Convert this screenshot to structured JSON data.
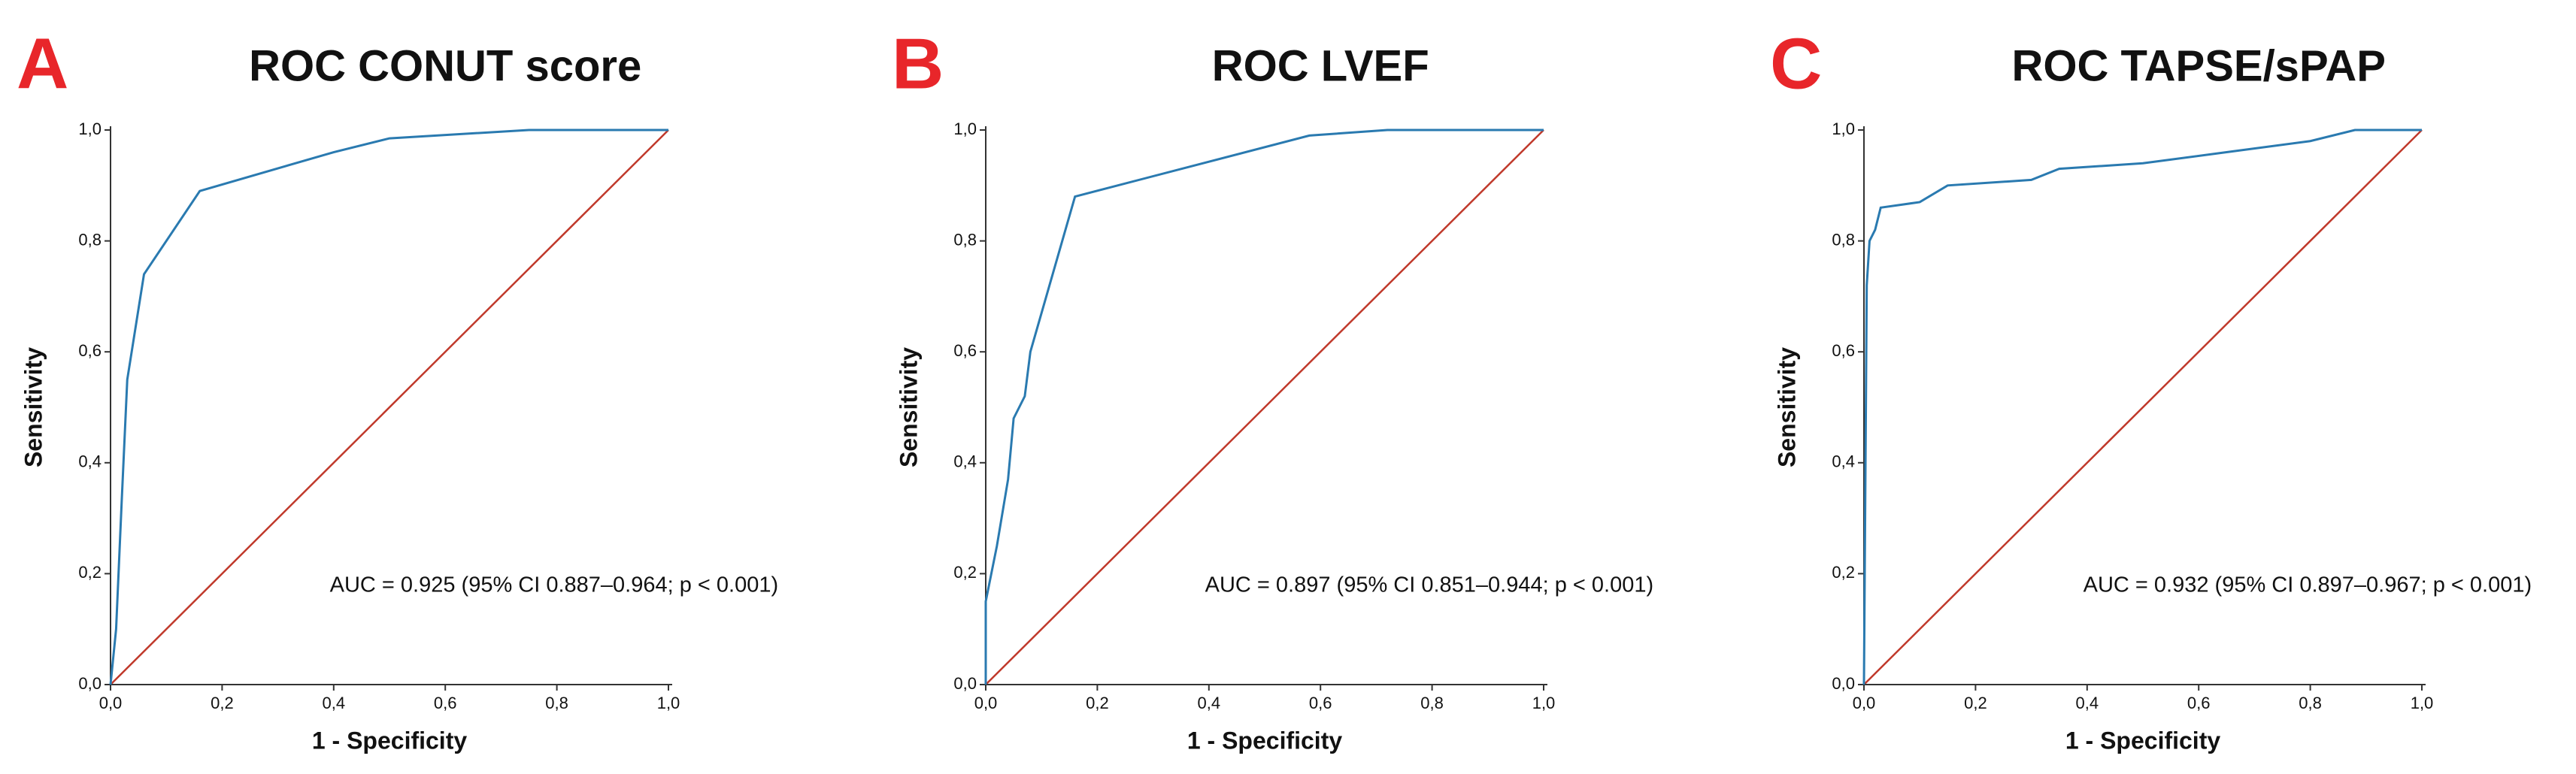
{
  "chart_data": [
    {
      "type": "line",
      "panel_label": "A",
      "panel_color": "#e8262a",
      "title": "ROC CONUT score",
      "x_label": "1 - Specificity",
      "y_label": "Sensitivity",
      "annotation": "AUC = 0.925 (95% CI 0.887–0.964; p < 0.001)",
      "x": [
        0,
        0.01,
        0.02,
        0.03,
        0.06,
        0.16,
        0.4,
        0.5,
        0.75,
        1
      ],
      "values": [
        0,
        0.1,
        0.33,
        0.55,
        0.74,
        0.89,
        0.96,
        0.985,
        1,
        1
      ],
      "color": "#2a7ab0",
      "diagonal": true,
      "diagonal_color": "#c0392b",
      "xlim": [
        0,
        1
      ],
      "ylim": [
        0,
        1
      ],
      "xticks": [
        {
          "value": 0,
          "label": "0,0"
        },
        {
          "value": 0.2,
          "label": "0,2"
        },
        {
          "value": 0.4,
          "label": "0,4"
        },
        {
          "value": 0.6,
          "label": "0,6"
        },
        {
          "value": 0.8,
          "label": "0,8"
        },
        {
          "value": 1,
          "label": "1,0"
        }
      ],
      "yticks": [
        {
          "value": 0,
          "label": "0,0"
        },
        {
          "value": 0.2,
          "label": "0,2"
        },
        {
          "value": 0.4,
          "label": "0,4"
        },
        {
          "value": 0.6,
          "label": "0,6"
        },
        {
          "value": 0.8,
          "label": "0,8"
        },
        {
          "value": 1,
          "label": "1,0"
        }
      ]
    },
    {
      "type": "line",
      "panel_label": "B",
      "panel_color": "#e8262a",
      "title": "ROC LVEF",
      "x_label": "1 - Specificity",
      "y_label": "Sensitivity",
      "annotation": "AUC = 0.897 (95% CI 0.851–0.944; p < 0.001)",
      "x": [
        0,
        0,
        0.02,
        0.04,
        0.05,
        0.07,
        0.08,
        0.16,
        0.58,
        0.72,
        0.98,
        1
      ],
      "values": [
        0,
        0.15,
        0.25,
        0.37,
        0.48,
        0.52,
        0.6,
        0.88,
        0.99,
        1,
        1,
        1
      ],
      "color": "#2a7ab0",
      "diagonal": true,
      "diagonal_color": "#c0392b",
      "xlim": [
        0,
        1
      ],
      "ylim": [
        0,
        1
      ],
      "xticks": [
        {
          "value": 0,
          "label": "0,0"
        },
        {
          "value": 0.2,
          "label": "0,2"
        },
        {
          "value": 0.4,
          "label": "0,4"
        },
        {
          "value": 0.6,
          "label": "0,6"
        },
        {
          "value": 0.8,
          "label": "0,8"
        },
        {
          "value": 1,
          "label": "1,0"
        }
      ],
      "yticks": [
        {
          "value": 0,
          "label": "0,0"
        },
        {
          "value": 0.2,
          "label": "0,2"
        },
        {
          "value": 0.4,
          "label": "0,4"
        },
        {
          "value": 0.6,
          "label": "0,6"
        },
        {
          "value": 0.8,
          "label": "0,8"
        },
        {
          "value": 1,
          "label": "1,0"
        }
      ]
    },
    {
      "type": "line",
      "panel_label": "C",
      "panel_color": "#e8262a",
      "title": "ROC TAPSE/sPAP",
      "x_label": "1 - Specificity",
      "y_label": "Sensitivity",
      "annotation": "AUC = 0.932 (95% CI 0.897–0.967; p < 0.001)",
      "x": [
        0,
        0.005,
        0.01,
        0.02,
        0.03,
        0.1,
        0.15,
        0.3,
        0.35,
        0.5,
        0.65,
        0.8,
        0.88,
        1
      ],
      "values": [
        0,
        0.72,
        0.8,
        0.82,
        0.86,
        0.87,
        0.9,
        0.91,
        0.93,
        0.94,
        0.96,
        0.98,
        1,
        1
      ],
      "color": "#2a7ab0",
      "diagonal": true,
      "diagonal_color": "#c0392b",
      "xlim": [
        0,
        1
      ],
      "ylim": [
        0,
        1
      ],
      "xticks": [
        {
          "value": 0,
          "label": "0,0"
        },
        {
          "value": 0.2,
          "label": "0,2"
        },
        {
          "value": 0.4,
          "label": "0,4"
        },
        {
          "value": 0.6,
          "label": "0,6"
        },
        {
          "value": 0.8,
          "label": "0,8"
        },
        {
          "value": 1,
          "label": "1,0"
        }
      ],
      "yticks": [
        {
          "value": 0,
          "label": "0,0"
        },
        {
          "value": 0.2,
          "label": "0,2"
        },
        {
          "value": 0.4,
          "label": "0,4"
        },
        {
          "value": 0.6,
          "label": "0,6"
        },
        {
          "value": 0.8,
          "label": "0,8"
        },
        {
          "value": 1,
          "label": "1,0"
        }
      ]
    }
  ]
}
